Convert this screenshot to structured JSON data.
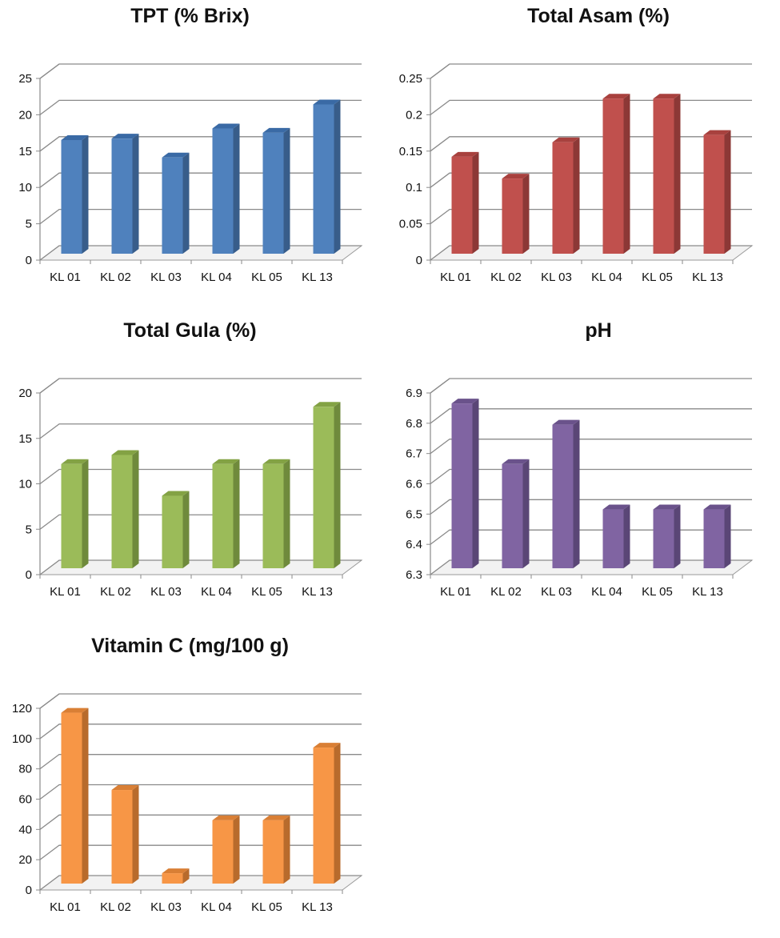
{
  "chart_data": [
    {
      "type": "bar",
      "title": "TPT (% Brix)",
      "categories": [
        "KL 01",
        "KL 02",
        "KL 03",
        "KL 04",
        "KL 05",
        "KL 13"
      ],
      "values": [
        16.3,
        16.5,
        13.9,
        17.9,
        17.3,
        21.2
      ],
      "ylim": [
        0,
        25
      ],
      "yticks": [
        "0",
        "5",
        "10",
        "15",
        "20",
        "25"
      ],
      "color": "#4f81bd",
      "side_color": "#385d8a",
      "top_color": "#3a6aa5",
      "grid": true,
      "legend": "none"
    },
    {
      "type": "bar",
      "title": "Total Asam (%)",
      "categories": [
        "KL 01",
        "KL 02",
        "KL 03",
        "KL 04",
        "KL 05",
        "KL 13"
      ],
      "values": [
        0.14,
        0.11,
        0.16,
        0.22,
        0.22,
        0.17
      ],
      "ylim": [
        0,
        0.25
      ],
      "yticks": [
        "0",
        "0.05",
        "0.1",
        "0.15",
        "0.2",
        "0.25"
      ],
      "color": "#c0504d",
      "side_color": "#8c3836",
      "top_color": "#a8413e",
      "grid": true,
      "legend": "none"
    },
    {
      "type": "bar",
      "title": "Total Gula (%)",
      "categories": [
        "KL 01",
        "KL 02",
        "KL 03",
        "KL 04",
        "KL 05",
        "KL 13"
      ],
      "values": [
        12,
        13,
        8.5,
        12,
        12,
        18.3
      ],
      "ylim": [
        0,
        20
      ],
      "yticks": [
        "0",
        "5",
        "10",
        "15",
        "20"
      ],
      "color": "#9bbb59",
      "side_color": "#6f8a3c",
      "top_color": "#83a244",
      "grid": true,
      "legend": "none"
    },
    {
      "type": "bar",
      "title": "pH",
      "categories": [
        "KL 01",
        "KL 02",
        "KL 03",
        "KL 04",
        "KL 05",
        "KL 13"
      ],
      "values": [
        6.86,
        6.66,
        6.79,
        6.51,
        6.51,
        6.51
      ],
      "ylim": [
        6.3,
        6.9
      ],
      "yticks": [
        "6.3",
        "6.4",
        "6.5",
        "6.6",
        "6.7",
        "6.8",
        "6.9"
      ],
      "color": "#8064a2",
      "side_color": "#5a4676",
      "top_color": "#6a528b",
      "grid": true,
      "legend": "none"
    },
    {
      "type": "bar",
      "title": "Vitamin C (mg/100 g)",
      "categories": [
        "KL 01",
        "KL 02",
        "KL 03",
        "KL 04",
        "KL 05",
        "KL 13"
      ],
      "values": [
        116,
        65,
        10,
        45,
        45,
        93
      ],
      "ylim": [
        0,
        120
      ],
      "yticks": [
        "0",
        "20",
        "40",
        "60",
        "80",
        "100",
        "120"
      ],
      "color": "#f79646",
      "side_color": "#b86b2c",
      "top_color": "#d97f35",
      "grid": true,
      "legend": "none"
    }
  ]
}
